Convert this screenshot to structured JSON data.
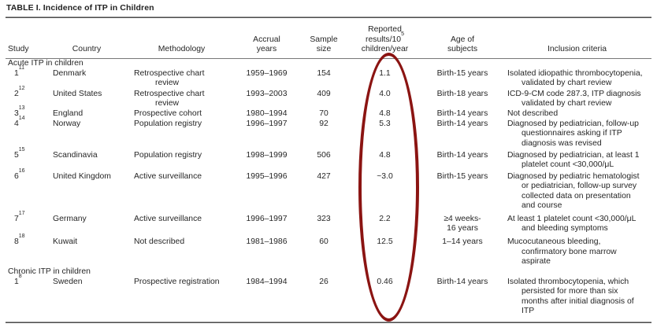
{
  "title": "TABLE I.  Incidence of ITP in Children",
  "header": {
    "study": "Study",
    "country": "Country",
    "methodology": "Methodology",
    "accrual": "Accrual\nyears",
    "sample": "Sample\nsize",
    "reported_l1": "Reported",
    "reported_l2_base": "results/10",
    "reported_l2_sup": "5",
    "reported_l3": "children/year",
    "age": "Age of\nsubjects",
    "inclusion": "Inclusion criteria"
  },
  "annotation": {
    "shape": "hand-drawn ellipse highlighting the reported results column",
    "color": "#8b1412"
  },
  "sections": [
    {
      "label": "Acute ITP in children",
      "rows": [
        {
          "study": {
            "num": "1",
            "sup": "11"
          },
          "country": "Denmark",
          "methodology": "Retrospective chart\nreview",
          "accrual": "1959–1969",
          "sample": "154",
          "reported": "1.1",
          "age": "Birth-15 years",
          "inclusion": "Isolated idiopathic thrombocytopenia,\nvalidated by chart review"
        },
        {
          "study": {
            "num": "2",
            "sup": "12"
          },
          "country": "United States",
          "methodology": "Retrospective chart\nreview",
          "accrual": "1993–2003",
          "sample": "409",
          "reported": "4.0",
          "age": "Birth-18 years",
          "inclusion": "ICD-9-CM code 287.3, ITP diagnosis\nvalidated by chart review"
        },
        {
          "study": {
            "num": "3",
            "sup": "13"
          },
          "country": "England",
          "methodology": "Prospective cohort",
          "accrual": "1980–1994",
          "sample": "70",
          "reported": "4.8",
          "age": "Birth-14 years",
          "inclusion": "Not described"
        },
        {
          "study": {
            "num": "4",
            "sup": "14"
          },
          "country": "Norway",
          "methodology": "Population registry",
          "accrual": "1996–1997",
          "sample": "92",
          "reported": "5.3",
          "age": "Birth-14 years",
          "inclusion": "Diagnosed by pediatrician, follow-up\nquestionnaires asking if ITP\ndiagnosis was revised"
        },
        {
          "study": {
            "num": "5",
            "sup": "15"
          },
          "country": "Scandinavia",
          "methodology": "Population registry",
          "accrual": "1998–1999",
          "sample": "506",
          "reported": "4.8",
          "age": "Birth-14 years",
          "inclusion": "Diagnosed by pediatrician, at least 1\nplatelet count <30,000/μL"
        },
        {
          "study": {
            "num": "6",
            "sup": "16"
          },
          "country": "United Kingdom",
          "methodology": "Active surveillance",
          "accrual": "1995–1996",
          "sample": "427",
          "reported": "~3.0",
          "age": "Birth-15 years",
          "inclusion": "Diagnosed by pediatric hematologist\nor pediatrician, follow-up survey\ncollected data on presentation\nand course"
        },
        {
          "study": {
            "num": "7",
            "sup": "17"
          },
          "country": "Germany",
          "methodology": "Active surveillance",
          "accrual": "1996–1997",
          "sample": "323",
          "reported": "2.2",
          "age": "≥4 weeks-\n16 years",
          "inclusion": "At least 1 platelet count <30,000/μL\nand bleeding symptoms"
        },
        {
          "study": {
            "num": "8",
            "sup": "18"
          },
          "country": "Kuwait",
          "methodology": "Not described",
          "accrual": "1981–1986",
          "sample": "60",
          "reported": "12.5",
          "age": "1–14 years",
          "inclusion": "Mucocutaneous bleeding,\nconfirmatory bone marrow\naspirate"
        }
      ]
    },
    {
      "label": "Chronic ITP in children",
      "rows": [
        {
          "study": {
            "num": "1",
            "sup": "8"
          },
          "country": "Sweden",
          "methodology": "Prospective registration",
          "accrual": "1984–1994",
          "sample": "26",
          "reported": "0.46",
          "age": "Birth-14 years",
          "inclusion": "Isolated thrombocytopenia, which\npersisted for more than six\nmonths after initial diagnosis of\nITP"
        }
      ]
    }
  ]
}
